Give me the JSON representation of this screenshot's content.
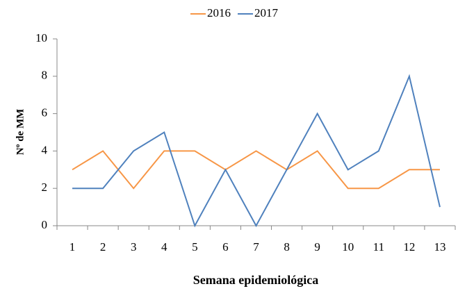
{
  "chart_data": {
    "type": "line",
    "x_label": "Semana epidemiológica",
    "y_label": "Nº de MM",
    "categories": [
      "1",
      "2",
      "3",
      "4",
      "5",
      "6",
      "7",
      "8",
      "9",
      "10",
      "11",
      "12",
      "13"
    ],
    "series": [
      {
        "name": "2016",
        "color": "#f79646",
        "values": [
          3,
          4,
          2,
          4,
          4,
          3,
          4,
          3,
          4,
          2,
          2,
          3,
          3
        ]
      },
      {
        "name": "2017",
        "color": "#4f81bd",
        "values": [
          2,
          2,
          4,
          5,
          0,
          3,
          0,
          3,
          6,
          3,
          4,
          8,
          1
        ]
      }
    ],
    "ylim": [
      0,
      10
    ],
    "yticks": [
      0,
      2,
      4,
      6,
      8,
      10
    ],
    "grid": false,
    "legend": "top"
  }
}
